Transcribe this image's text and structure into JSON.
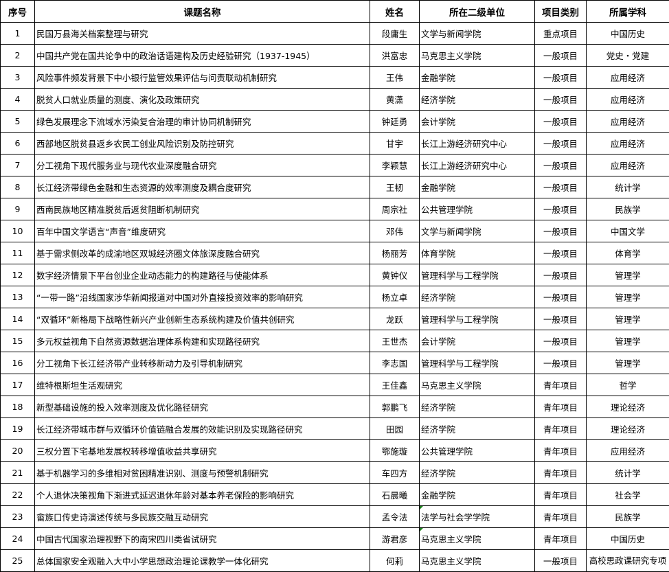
{
  "headers": [
    "序号",
    "课题名称",
    "姓名",
    "所在二级单位",
    "项目类别",
    "所属学科"
  ],
  "rows": [
    {
      "no": "1",
      "title": "民国万县海关档案整理与研究",
      "name": "段庸生",
      "unit": "文学与新闻学院",
      "type": "重点项目",
      "subject": "中国历史"
    },
    {
      "no": "2",
      "title": "中国共产党在国共论争中的政治话语建构及历史经验研究（1937-1945）",
      "name": "洪富忠",
      "unit": "马克思主义学院",
      "type": "一般项目",
      "subject": "党史・党建"
    },
    {
      "no": "3",
      "title": "风险事件频发背景下中小银行监管效果评估与问责联动机制研究",
      "name": "王伟",
      "unit": "金融学院",
      "type": "一般项目",
      "subject": "应用经济"
    },
    {
      "no": "4",
      "title": "脱贫人口就业质量的测度、演化及政策研究",
      "name": "黄潇",
      "unit": "经济学院",
      "type": "一般项目",
      "subject": "应用经济"
    },
    {
      "no": "5",
      "title": "绿色发展理念下流域水污染复合治理的审计协同机制研究",
      "name": "钟廷勇",
      "unit": "会计学院",
      "type": "一般项目",
      "subject": "应用经济"
    },
    {
      "no": "6",
      "title": "西部地区脱贫县返乡农民工创业风险识别及防控研究",
      "name": "甘宇",
      "unit": "长江上游经济研究中心",
      "type": "一般项目",
      "subject": "应用经济"
    },
    {
      "no": "7",
      "title": "分工视角下现代服务业与现代农业深度融合研究",
      "name": "李颖慧",
      "unit": "长江上游经济研究中心",
      "type": "一般项目",
      "subject": "应用经济"
    },
    {
      "no": "8",
      "title": "长江经济带绿色金融和生态资源的效率测度及耦合度研究",
      "name": "王韧",
      "unit": "金融学院",
      "type": "一般项目",
      "subject": "统计学"
    },
    {
      "no": "9",
      "title": "西南民族地区精准脱贫后返贫阻断机制研究",
      "name": "周宗社",
      "unit": "公共管理学院",
      "type": "一般项目",
      "subject": "民族学"
    },
    {
      "no": "10",
      "title": "百年中国文学语言“声音”维度研究",
      "name": "邓伟",
      "unit": "文学与新闻学院",
      "type": "一般项目",
      "subject": "中国文学"
    },
    {
      "no": "11",
      "title": "基于需求侧改革的成渝地区双城经济圈文体旅深度融合研究",
      "name": "杨丽芳",
      "unit": "体育学院",
      "type": "一般项目",
      "subject": "体育学"
    },
    {
      "no": "12",
      "title": "数字经济情景下平台创业企业动态能力的构建路径与使能体系",
      "name": "黄钟仪",
      "unit": "管理科学与工程学院",
      "type": "一般项目",
      "subject": "管理学"
    },
    {
      "no": "13",
      "title": "“一带一路”沿线国家涉华新闻报道对中国对外直接投资效率的影响研究",
      "name": "杨立卓",
      "unit": "经济学院",
      "type": "一般项目",
      "subject": "管理学"
    },
    {
      "no": "14",
      "title": "“双循环”新格局下战略性新兴产业创新生态系统构建及价值共创研究",
      "name": "龙跃",
      "unit": "管理科学与工程学院",
      "type": "一般项目",
      "subject": "管理学"
    },
    {
      "no": "15",
      "title": "多元权益视角下自然资源数据治理体系构建和实现路径研究",
      "name": "王世杰",
      "unit": "会计学院",
      "type": "一般项目",
      "subject": "管理学"
    },
    {
      "no": "16",
      "title": "分工视角下长江经济带产业转移新动力及引导机制研究",
      "name": "李志国",
      "unit": "管理科学与工程学院",
      "type": "一般项目",
      "subject": "管理学"
    },
    {
      "no": "17",
      "title": "维特根斯坦生活观研究",
      "name": "王佳鑫",
      "unit": "马克思主义学院",
      "type": "青年项目",
      "subject": "哲学"
    },
    {
      "no": "18",
      "title": "新型基础设施的投入效率测度及优化路径研究",
      "name": "郭鹏飞",
      "unit": "经济学院",
      "type": "青年项目",
      "subject": "理论经济"
    },
    {
      "no": "19",
      "title": "长江经济带城市群与双循环价值链融合发展的效能识别及实现路径研究",
      "name": "田园",
      "unit": "经济学院",
      "type": "青年项目",
      "subject": "理论经济"
    },
    {
      "no": "20",
      "title": "三权分置下宅基地发展权转移增值收益共享研究",
      "name": "鄂施璇",
      "unit": "公共管理学院",
      "type": "青年项目",
      "subject": "应用经济"
    },
    {
      "no": "21",
      "title": "基于机器学习的多维相对贫困精准识别、测度与预警机制研究",
      "name": "车四方",
      "unit": "经济学院",
      "type": "青年项目",
      "subject": "统计学"
    },
    {
      "no": "22",
      "title": "个人退休决策视角下渐进式延迟退休年龄对基本养老保险的影响研究",
      "name": "石晨曦",
      "unit": "金融学院",
      "type": "青年项目",
      "subject": "社会学"
    },
    {
      "no": "23",
      "title": "畲族口传史诗演述传统与多民族交融互动研究",
      "name": "孟令法",
      "unit": "法学与社会学学院",
      "type": "青年项目",
      "subject": "民族学",
      "comment": true
    },
    {
      "no": "24",
      "title": "中国古代国家治理视野下的南宋四川类省试研究",
      "name": "游君彦",
      "unit": "马克思主义学院",
      "type": "青年项目",
      "subject": "中国历史",
      "comment": true
    },
    {
      "no": "25",
      "title": "总体国家安全观融入大中小学思想政治理论课教学一体化研究",
      "name": "何莉",
      "unit": "马克思主义学院",
      "type": "一般项目",
      "subject": "高校思政课研究专项"
    }
  ],
  "colors": {
    "border": "#000000",
    "comment_indicator": "#1a7f1a"
  }
}
